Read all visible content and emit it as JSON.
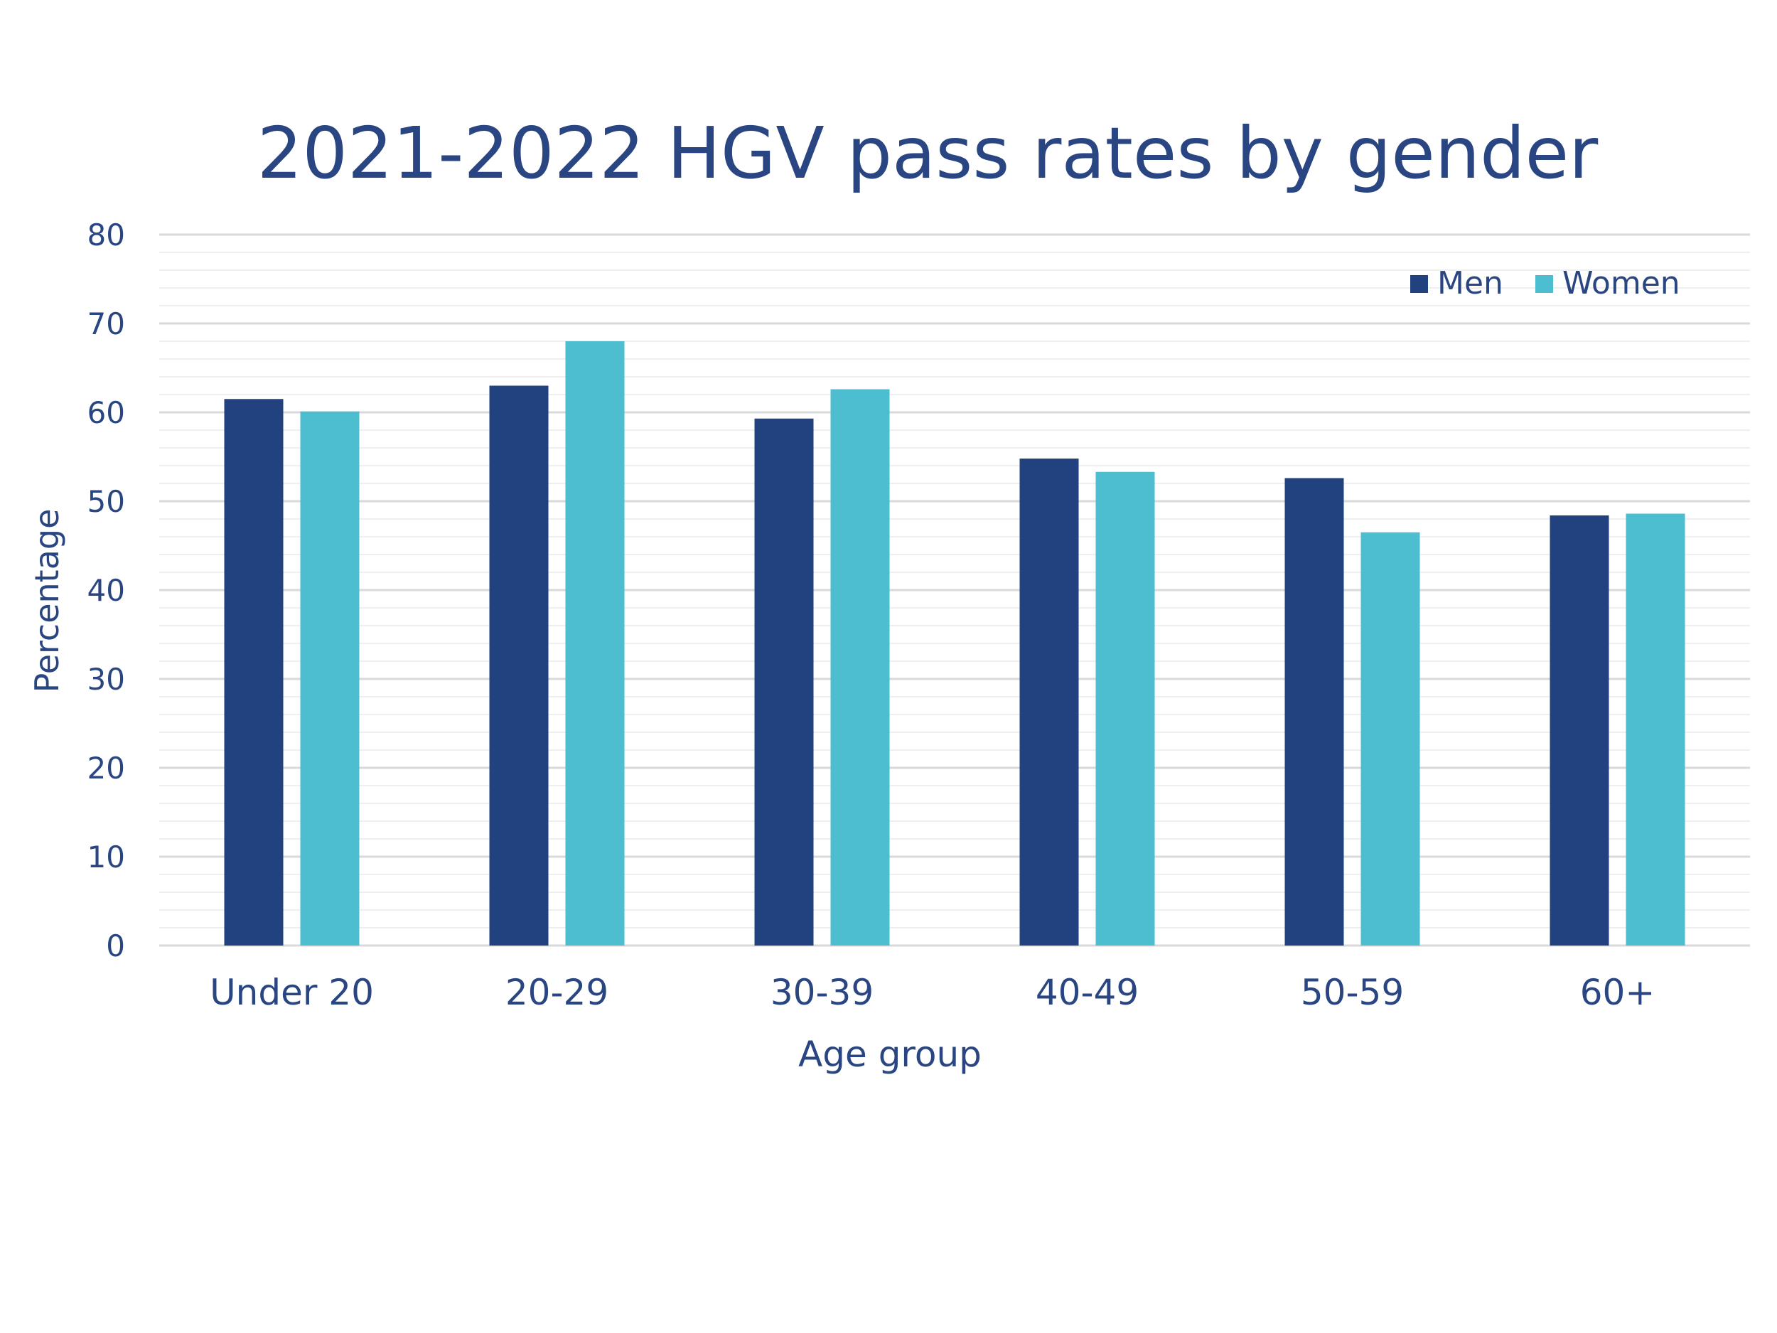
{
  "chart_data": {
    "type": "bar",
    "title": "2021-2022 HGV pass rates by gender",
    "xlabel": "Age group",
    "ylabel": "Percentage",
    "categories": [
      "Under 20",
      "20-29",
      "30-39",
      "40-49",
      "50-59",
      "60+"
    ],
    "series": [
      {
        "name": "Men",
        "color": "#21417f",
        "values": [
          61.5,
          63.0,
          59.3,
          54.8,
          52.6,
          48.4
        ]
      },
      {
        "name": "Women",
        "color": "#4dbdd0",
        "values": [
          60.1,
          68.0,
          62.6,
          53.3,
          46.5,
          48.6
        ]
      }
    ],
    "ylim": [
      0,
      80
    ],
    "yticks": [
      0,
      10,
      20,
      30,
      40,
      50,
      60,
      70,
      80
    ],
    "minor_step": 2,
    "grid": true,
    "legend_position": "top-right",
    "colors": {
      "text": "#2a4682",
      "major_grid": "#d9d9d9",
      "minor_grid": "#efefef"
    }
  }
}
